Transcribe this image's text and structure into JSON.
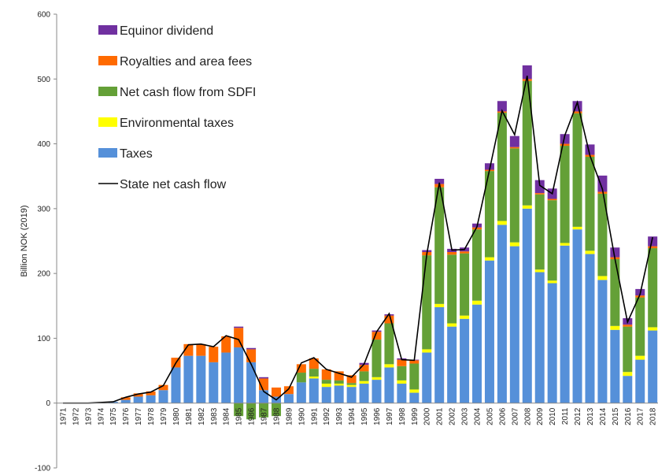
{
  "chart_data": {
    "type": "stacked_bar_line",
    "y_label": "Billion NOK (2019)",
    "categories": [
      "1971",
      "1972",
      "1973",
      "1974",
      "1975",
      "1976",
      "1977",
      "1978",
      "1979",
      "1980",
      "1981",
      "1982",
      "1983",
      "1984",
      "1985",
      "1986",
      "1987",
      "1988",
      "1989",
      "1990",
      "1991",
      "1992",
      "1993",
      "1994",
      "1995",
      "1996",
      "1997",
      "1998",
      "1999",
      "2000",
      "2001",
      "2002",
      "2003",
      "2004",
      "2005",
      "2006",
      "2007",
      "2008",
      "2009",
      "2010",
      "2011",
      "2012",
      "2013",
      "2014",
      "2015",
      "2016",
      "2017",
      "2018"
    ],
    "series": [
      {
        "name": "Taxes",
        "color": "#5590d9",
        "values": [
          0,
          0,
          0,
          1,
          2,
          5,
          10,
          12,
          20,
          55,
          73,
          73,
          63,
          78,
          86,
          63,
          20,
          10,
          14,
          32,
          38,
          25,
          27,
          25,
          30,
          36,
          55,
          30,
          16,
          78,
          148,
          118,
          130,
          152,
          220,
          275,
          242,
          300,
          202,
          185,
          243,
          268,
          230,
          190,
          113,
          42,
          67,
          112
        ]
      },
      {
        "name": "Environmental taxes",
        "color": "#ffff00",
        "values": [
          0,
          0,
          0,
          0,
          0,
          0,
          0,
          0,
          0,
          0,
          0,
          0,
          0,
          0,
          0,
          0,
          0,
          0,
          0,
          0,
          3,
          5,
          3,
          3,
          4,
          4,
          5,
          5,
          5,
          5,
          5,
          5,
          5,
          6,
          5,
          6,
          6,
          5,
          4,
          4,
          4,
          4,
          5,
          6,
          6,
          6,
          6,
          5
        ]
      },
      {
        "name": "Net cash flow from SDFI",
        "color": "#64a037",
        "values": [
          0,
          0,
          0,
          0,
          0,
          0,
          0,
          0,
          0,
          0,
          0,
          0,
          0,
          0,
          -20,
          -25,
          -22,
          -20,
          0,
          15,
          12,
          6,
          5,
          3,
          15,
          58,
          63,
          22,
          40,
          145,
          180,
          106,
          96,
          110,
          133,
          167,
          145,
          192,
          116,
          124,
          150,
          175,
          145,
          127,
          103,
          70,
          90,
          122
        ]
      },
      {
        "name": "Royalties and area fees",
        "color": "#ff6a00",
        "values": [
          0,
          0,
          0,
          0,
          0,
          4,
          5,
          6,
          8,
          15,
          18,
          18,
          24,
          25,
          30,
          20,
          18,
          14,
          12,
          13,
          16,
          16,
          14,
          12,
          10,
          12,
          12,
          10,
          5,
          5,
          5,
          4,
          3,
          3,
          2,
          2,
          2,
          3,
          2,
          2,
          3,
          3,
          3,
          3,
          3,
          3,
          3,
          3
        ]
      },
      {
        "name": "Equinor dividend",
        "color": "#7030a0",
        "values": [
          0,
          0,
          0,
          0,
          0,
          0,
          0,
          0,
          0,
          0,
          0,
          0,
          0,
          0,
          2,
          2,
          2,
          0,
          0,
          0,
          0,
          0,
          0,
          0,
          3,
          2,
          2,
          2,
          1,
          3,
          8,
          5,
          6,
          6,
          10,
          16,
          17,
          21,
          20,
          16,
          15,
          16,
          16,
          25,
          15,
          10,
          10,
          15
        ]
      }
    ],
    "line_series": {
      "name": "State net cash flow",
      "color": "#000000",
      "values": [
        0,
        0,
        0,
        1,
        2,
        9,
        14,
        17,
        27,
        62,
        90,
        91,
        87,
        104,
        98,
        60,
        18,
        5,
        22,
        62,
        70,
        52,
        46,
        40,
        60,
        110,
        138,
        67,
        66,
        230,
        340,
        236,
        237,
        272,
        360,
        451,
        414,
        505,
        336,
        323,
        413,
        464,
        382,
        330,
        222,
        125,
        168,
        256
      ]
    },
    "ylim": [
      -100,
      600
    ],
    "yticks": [
      -100,
      0,
      100,
      200,
      300,
      400,
      500,
      600
    ]
  }
}
